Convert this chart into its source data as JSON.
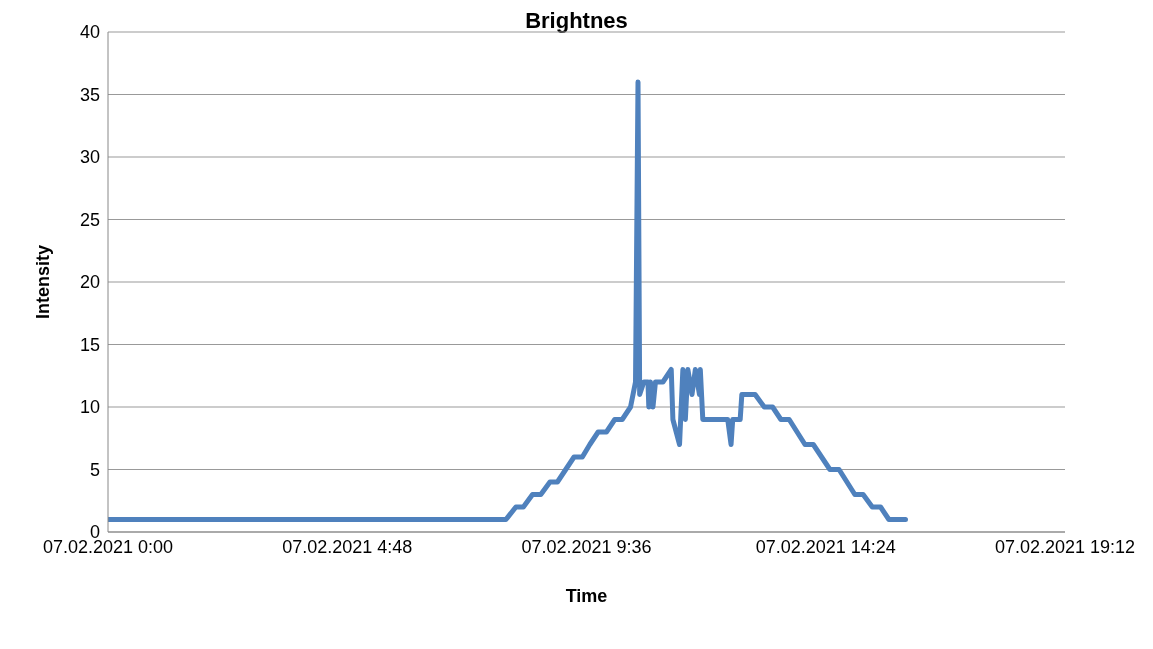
{
  "chart_data": {
    "type": "line",
    "title": "Brightnes",
    "xlabel": "Time",
    "ylabel": "Intensity",
    "series": [
      {
        "color": "#4f81bd",
        "x": [
          "2021-02-07T00:00",
          "2021-02-07T07:59",
          "2021-02-07T08:11",
          "2021-02-07T08:20",
          "2021-02-07T08:31",
          "2021-02-07T08:41",
          "2021-02-07T08:52",
          "2021-02-07T09:01",
          "2021-02-07T09:11",
          "2021-02-07T09:21",
          "2021-02-07T09:31",
          "2021-02-07T09:40",
          "2021-02-07T09:50",
          "2021-02-07T10:00",
          "2021-02-07T10:10",
          "2021-02-07T10:19",
          "2021-02-07T10:29",
          "2021-02-07T10:35",
          "2021-02-07T10:38",
          "2021-02-07T10:40",
          "2021-02-07T10:45",
          "2021-02-07T10:50",
          "2021-02-07T10:51",
          "2021-02-07T10:53",
          "2021-02-07T10:56",
          "2021-02-07T10:59",
          "2021-02-07T11:08",
          "2021-02-07T11:18",
          "2021-02-07T11:20",
          "2021-02-07T11:28",
          "2021-02-07T11:32",
          "2021-02-07T11:35",
          "2021-02-07T11:38",
          "2021-02-07T11:43",
          "2021-02-07T11:47",
          "2021-02-07T11:52",
          "2021-02-07T11:53",
          "2021-02-07T11:56",
          "2021-02-07T12:26",
          "2021-02-07T12:30",
          "2021-02-07T12:32",
          "2021-02-07T12:41",
          "2021-02-07T12:43",
          "2021-02-07T12:59",
          "2021-02-07T13:10",
          "2021-02-07T13:20",
          "2021-02-07T13:30",
          "2021-02-07T13:40",
          "2021-02-07T13:59",
          "2021-02-07T14:09",
          "2021-02-07T14:29",
          "2021-02-07T14:40",
          "2021-02-07T14:59",
          "2021-02-07T15:09",
          "2021-02-07T15:20",
          "2021-02-07T15:30",
          "2021-02-07T15:40",
          "2021-02-07T16:00"
        ],
        "values": [
          1,
          1,
          2,
          2,
          3,
          3,
          4,
          4,
          5,
          6,
          6,
          7,
          8,
          8,
          9,
          9,
          10,
          12,
          36,
          11,
          12,
          12,
          10,
          12,
          10,
          12,
          12,
          13,
          9,
          7,
          13,
          9,
          13,
          11,
          13,
          11,
          13,
          9,
          9,
          7,
          9,
          9,
          11,
          11,
          10,
          10,
          9,
          9,
          7,
          7,
          5,
          5,
          3,
          3,
          2,
          2,
          1,
          1
        ]
      }
    ],
    "xlim": [
      "2021-02-07T00:00",
      "2021-02-07T19:12"
    ],
    "xticks": [
      {
        "value": "2021-02-07T00:00",
        "label": "07.02.2021 0:00"
      },
      {
        "value": "2021-02-07T04:48",
        "label": "07.02.2021 4:48"
      },
      {
        "value": "2021-02-07T09:36",
        "label": "07.02.2021 9:36"
      },
      {
        "value": "2021-02-07T14:24",
        "label": "07.02.2021 14:24"
      },
      {
        "value": "2021-02-07T19:12",
        "label": "07.02.2021 19:12"
      }
    ],
    "ylim": [
      0,
      40
    ],
    "yticks": [
      0,
      5,
      10,
      15,
      20,
      25,
      30,
      35,
      40
    ],
    "grid": "y",
    "legend": false,
    "marker": "none",
    "line_style": "solid"
  }
}
